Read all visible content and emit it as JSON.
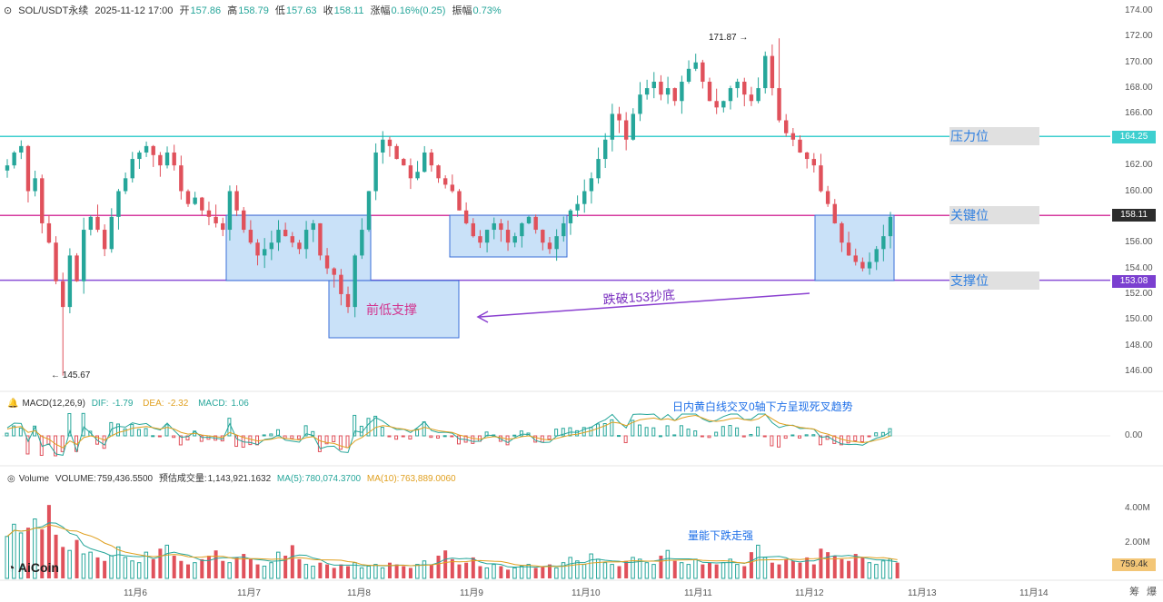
{
  "header": {
    "symbol": "SOL/USDT永续",
    "datetime": "2025-11-12 17:00",
    "open_label": "开",
    "open": "157.86",
    "high_label": "高",
    "high": "158.79",
    "low_label": "低",
    "low": "157.63",
    "close_label": "收",
    "close": "158.11",
    "change_label": "涨幅",
    "change": "0.16%(0.25)",
    "amplitude_label": "振幅",
    "amplitude": "0.73%"
  },
  "price_axis": [
    "174.00",
    "172.00",
    "170.00",
    "168.00",
    "166.00",
    "164.00",
    "162.00",
    "160.00",
    "158.00",
    "156.00",
    "154.00",
    "152.00",
    "150.00",
    "148.00",
    "146.00"
  ],
  "price_tags": {
    "resistance": "164.25",
    "key": "158.11",
    "support": "153.08"
  },
  "levels": {
    "resistance_label": "压力位",
    "key_label": "关键位",
    "support_label": "支撑位"
  },
  "markers": {
    "high": "171.87",
    "low": "145.67"
  },
  "annotations": {
    "prev_low": "前低支撑",
    "break": "跌破153抄底",
    "macd_note": "日内黄白线交叉0轴下方呈现死叉趋势",
    "vol_note": "量能下跌走强"
  },
  "macd": {
    "title": "MACD(12,26,9)",
    "dif_label": "DIF:",
    "dif": "-1.79",
    "dea_label": "DEA:",
    "dea": "-2.32",
    "macd_label": "MACD:",
    "macd": "1.06",
    "zero": "0.00"
  },
  "volume": {
    "title": "Volume",
    "vol_label": "VOLUME:",
    "vol": "759,436.5500",
    "est_label": "预估成交量:",
    "est": "1,143,921.1632",
    "ma5_label": "MA(5):",
    "ma5": "780,074.3700",
    "ma10_label": "MA(10):",
    "ma10": "763,889.0060",
    "axis": [
      "4.00M",
      "2.00M"
    ],
    "tag": "759.4k"
  },
  "x_axis": [
    "11月6",
    "11月7",
    "11月8",
    "11月9",
    "11月10",
    "11月11",
    "11月12",
    "11月13",
    "11月14"
  ],
  "logo": "AiCoin",
  "corner": [
    "筹",
    "爆"
  ],
  "colors": {
    "up": "#26a69a",
    "down": "#e0515b",
    "resistance": "#3ecfcf",
    "key": "#d63ca0",
    "support": "#8a4fd6",
    "box": "#bfdcf7"
  },
  "chart_data": {
    "type": "candlestick",
    "price_range": [
      145,
      175
    ],
    "levels": {
      "resistance": 164.25,
      "key": 158.11,
      "support": 153.08
    },
    "extremes": {
      "high": 171.87,
      "low": 145.67
    },
    "path": [
      162,
      163,
      163.5,
      160,
      161,
      157.5,
      156,
      153,
      151,
      155,
      153,
      157,
      158,
      157,
      155.5,
      158,
      160,
      161,
      162.5,
      163,
      163.5,
      162.8,
      162,
      163,
      162,
      160,
      159,
      159.5,
      158.5,
      158,
      157.5,
      157,
      160,
      158.5,
      157,
      156,
      155,
      155.5,
      156,
      157,
      156.5,
      156,
      155.5,
      157,
      157.5,
      155,
      154,
      153.5,
      152,
      151,
      155,
      157,
      160,
      163,
      164,
      163.5,
      162.5,
      162,
      161,
      161.5,
      163,
      162,
      161,
      160.5,
      160,
      158.5,
      157.5,
      156.5,
      156,
      157,
      157.5,
      157,
      156,
      156.5,
      157.5,
      158,
      157,
      156,
      155.5,
      156.5,
      157.5,
      158.5,
      159,
      160,
      161,
      162.5,
      164,
      166,
      165.5,
      164,
      166,
      167.5,
      168,
      168.5,
      167.5,
      168,
      167,
      168.5,
      169.5,
      170,
      168.5,
      167,
      166.5,
      167,
      168,
      168.5,
      167.5,
      167,
      168,
      170.5,
      168,
      165.5,
      164.5,
      164,
      163,
      162.5,
      162,
      160,
      159,
      157.5,
      156,
      155,
      154.5,
      154,
      154.5,
      155.5,
      156.5,
      158
    ],
    "volume_path": [
      2.4,
      3.1,
      2.6,
      2.9,
      3.4,
      2.8,
      4.2,
      2.5,
      1.8,
      1.6,
      2.2,
      1.4,
      1.5,
      1.2,
      1.0,
      1.3,
      1.8,
      1.2,
      1.0,
      0.9,
      1.5,
      1.1,
      1.7,
      1.9,
      1.3,
      1.0,
      0.8,
      0.9,
      1.1,
      1.3,
      1.6,
      1.0,
      0.9,
      1.2,
      1.4,
      1.1,
      0.8,
      0.7,
      0.9,
      1.5,
      1.3,
      1.9,
      1.1,
      0.8,
      0.7,
      0.9,
      0.8,
      0.6,
      0.8,
      0.7,
      0.9,
      0.6,
      0.7,
      0.8,
      0.6,
      0.9,
      0.8,
      0.7,
      0.6,
      0.8,
      1.0,
      0.8,
      1.3,
      1.6,
      1.1,
      0.8,
      0.9,
      1.2,
      0.7,
      0.6,
      0.8,
      0.7,
      0.5,
      0.6,
      0.7,
      0.8,
      0.6,
      0.7,
      0.8,
      0.6,
      0.9,
      1.2,
      1.0,
      0.8,
      1.4,
      1.1,
      0.9,
      0.8,
      0.7,
      1.0,
      1.2,
      1.1,
      0.9,
      0.8,
      1.3,
      1.6,
      1.0,
      0.9,
      0.8,
      1.1,
      0.8,
      0.9,
      0.8,
      0.9,
      1.1,
      0.8,
      0.7,
      1.5,
      1.9,
      1.2,
      0.9,
      0.8,
      1.1,
      1.0,
      0.9,
      1.2,
      0.8,
      1.7,
      1.5,
      1.3,
      1.1,
      1.0,
      1.4,
      1.2,
      0.9,
      0.8,
      1.0,
      1.1,
      0.9
    ],
    "volume_range": [
      0,
      5
    ],
    "x_labels": [
      "11月6",
      "11月7",
      "11月8",
      "11月9",
      "11月10",
      "11月11",
      "11月12",
      "11月13",
      "11月14"
    ]
  }
}
